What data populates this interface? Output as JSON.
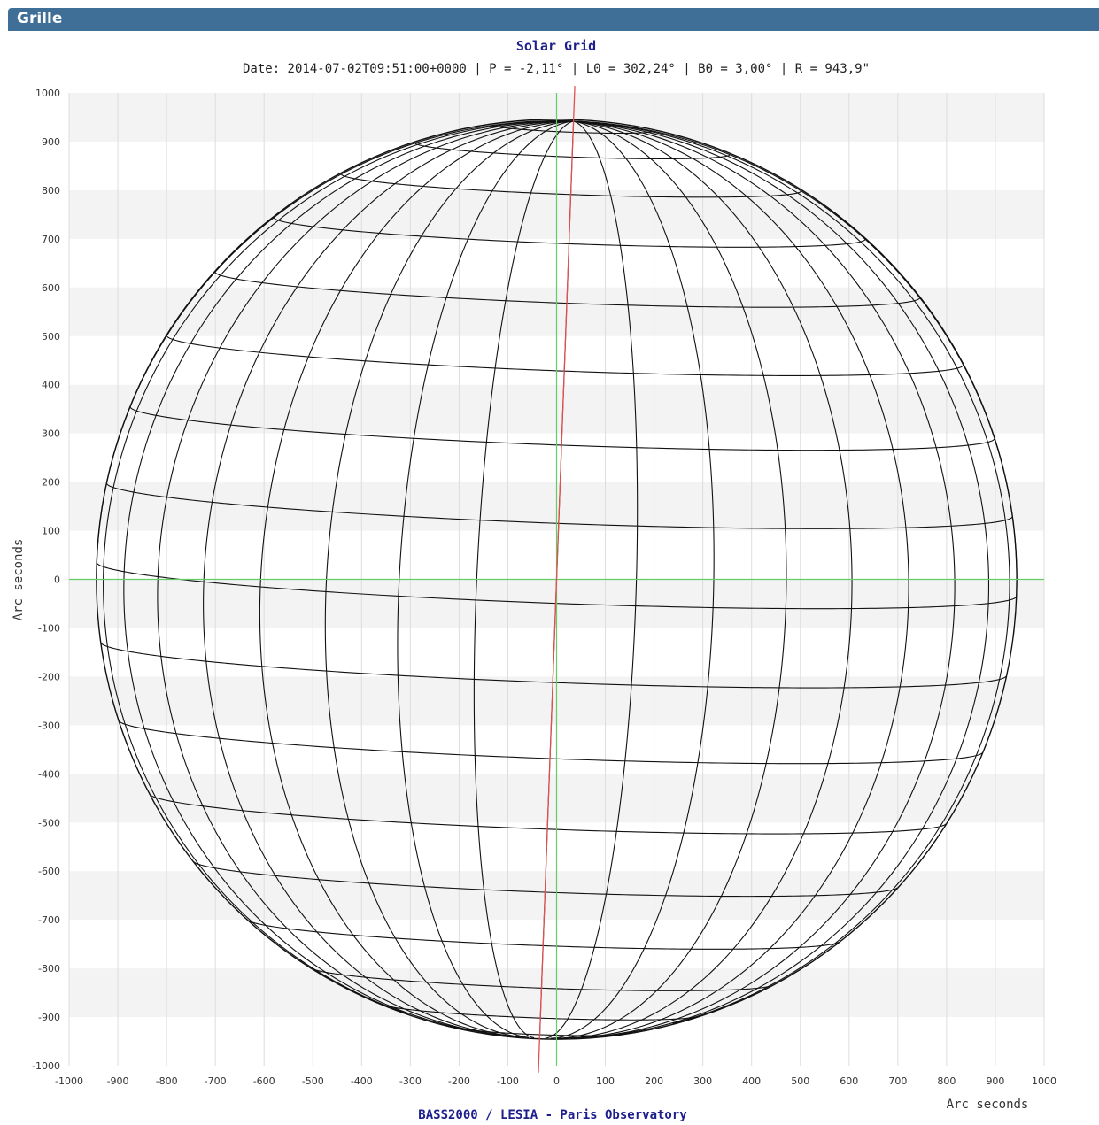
{
  "panel": {
    "title": "Grille"
  },
  "chart_data": {
    "type": "solar-grid",
    "title": "Solar Grid",
    "subtitle": "Date: 2014-07-02T09:51:00+0000 | P = -2,11° | L0 = 302,24° | B0 = 3,00° | R = 943,9\"",
    "xlabel": "Arc seconds",
    "ylabel": "Arc seconds",
    "xlim": [
      -1000,
      1000
    ],
    "ylim": [
      -1000,
      1000
    ],
    "x_ticks": [
      -1000,
      -900,
      -800,
      -700,
      -600,
      -500,
      -400,
      -300,
      -200,
      -100,
      0,
      100,
      200,
      300,
      400,
      500,
      600,
      700,
      800,
      900,
      1000
    ],
    "y_ticks": [
      1000,
      900,
      800,
      700,
      600,
      500,
      400,
      300,
      200,
      100,
      0,
      -100,
      -200,
      -300,
      -400,
      -500,
      -600,
      -700,
      -800,
      -900,
      -1000
    ],
    "solar_radius_arcsec": 943.9,
    "p_angle_deg": -2.11,
    "b0_deg": 3.0,
    "l0_deg": 302.24,
    "grid_step_deg": 10,
    "colors": {
      "grid": "#111111",
      "axes_lines": "#66cc66",
      "rotation_axis": "#e05050",
      "band": "#f3f3f3",
      "title": "#1e1e8c"
    }
  },
  "footer": {
    "text": "BASS2000 / LESIA - Paris Observatory"
  }
}
